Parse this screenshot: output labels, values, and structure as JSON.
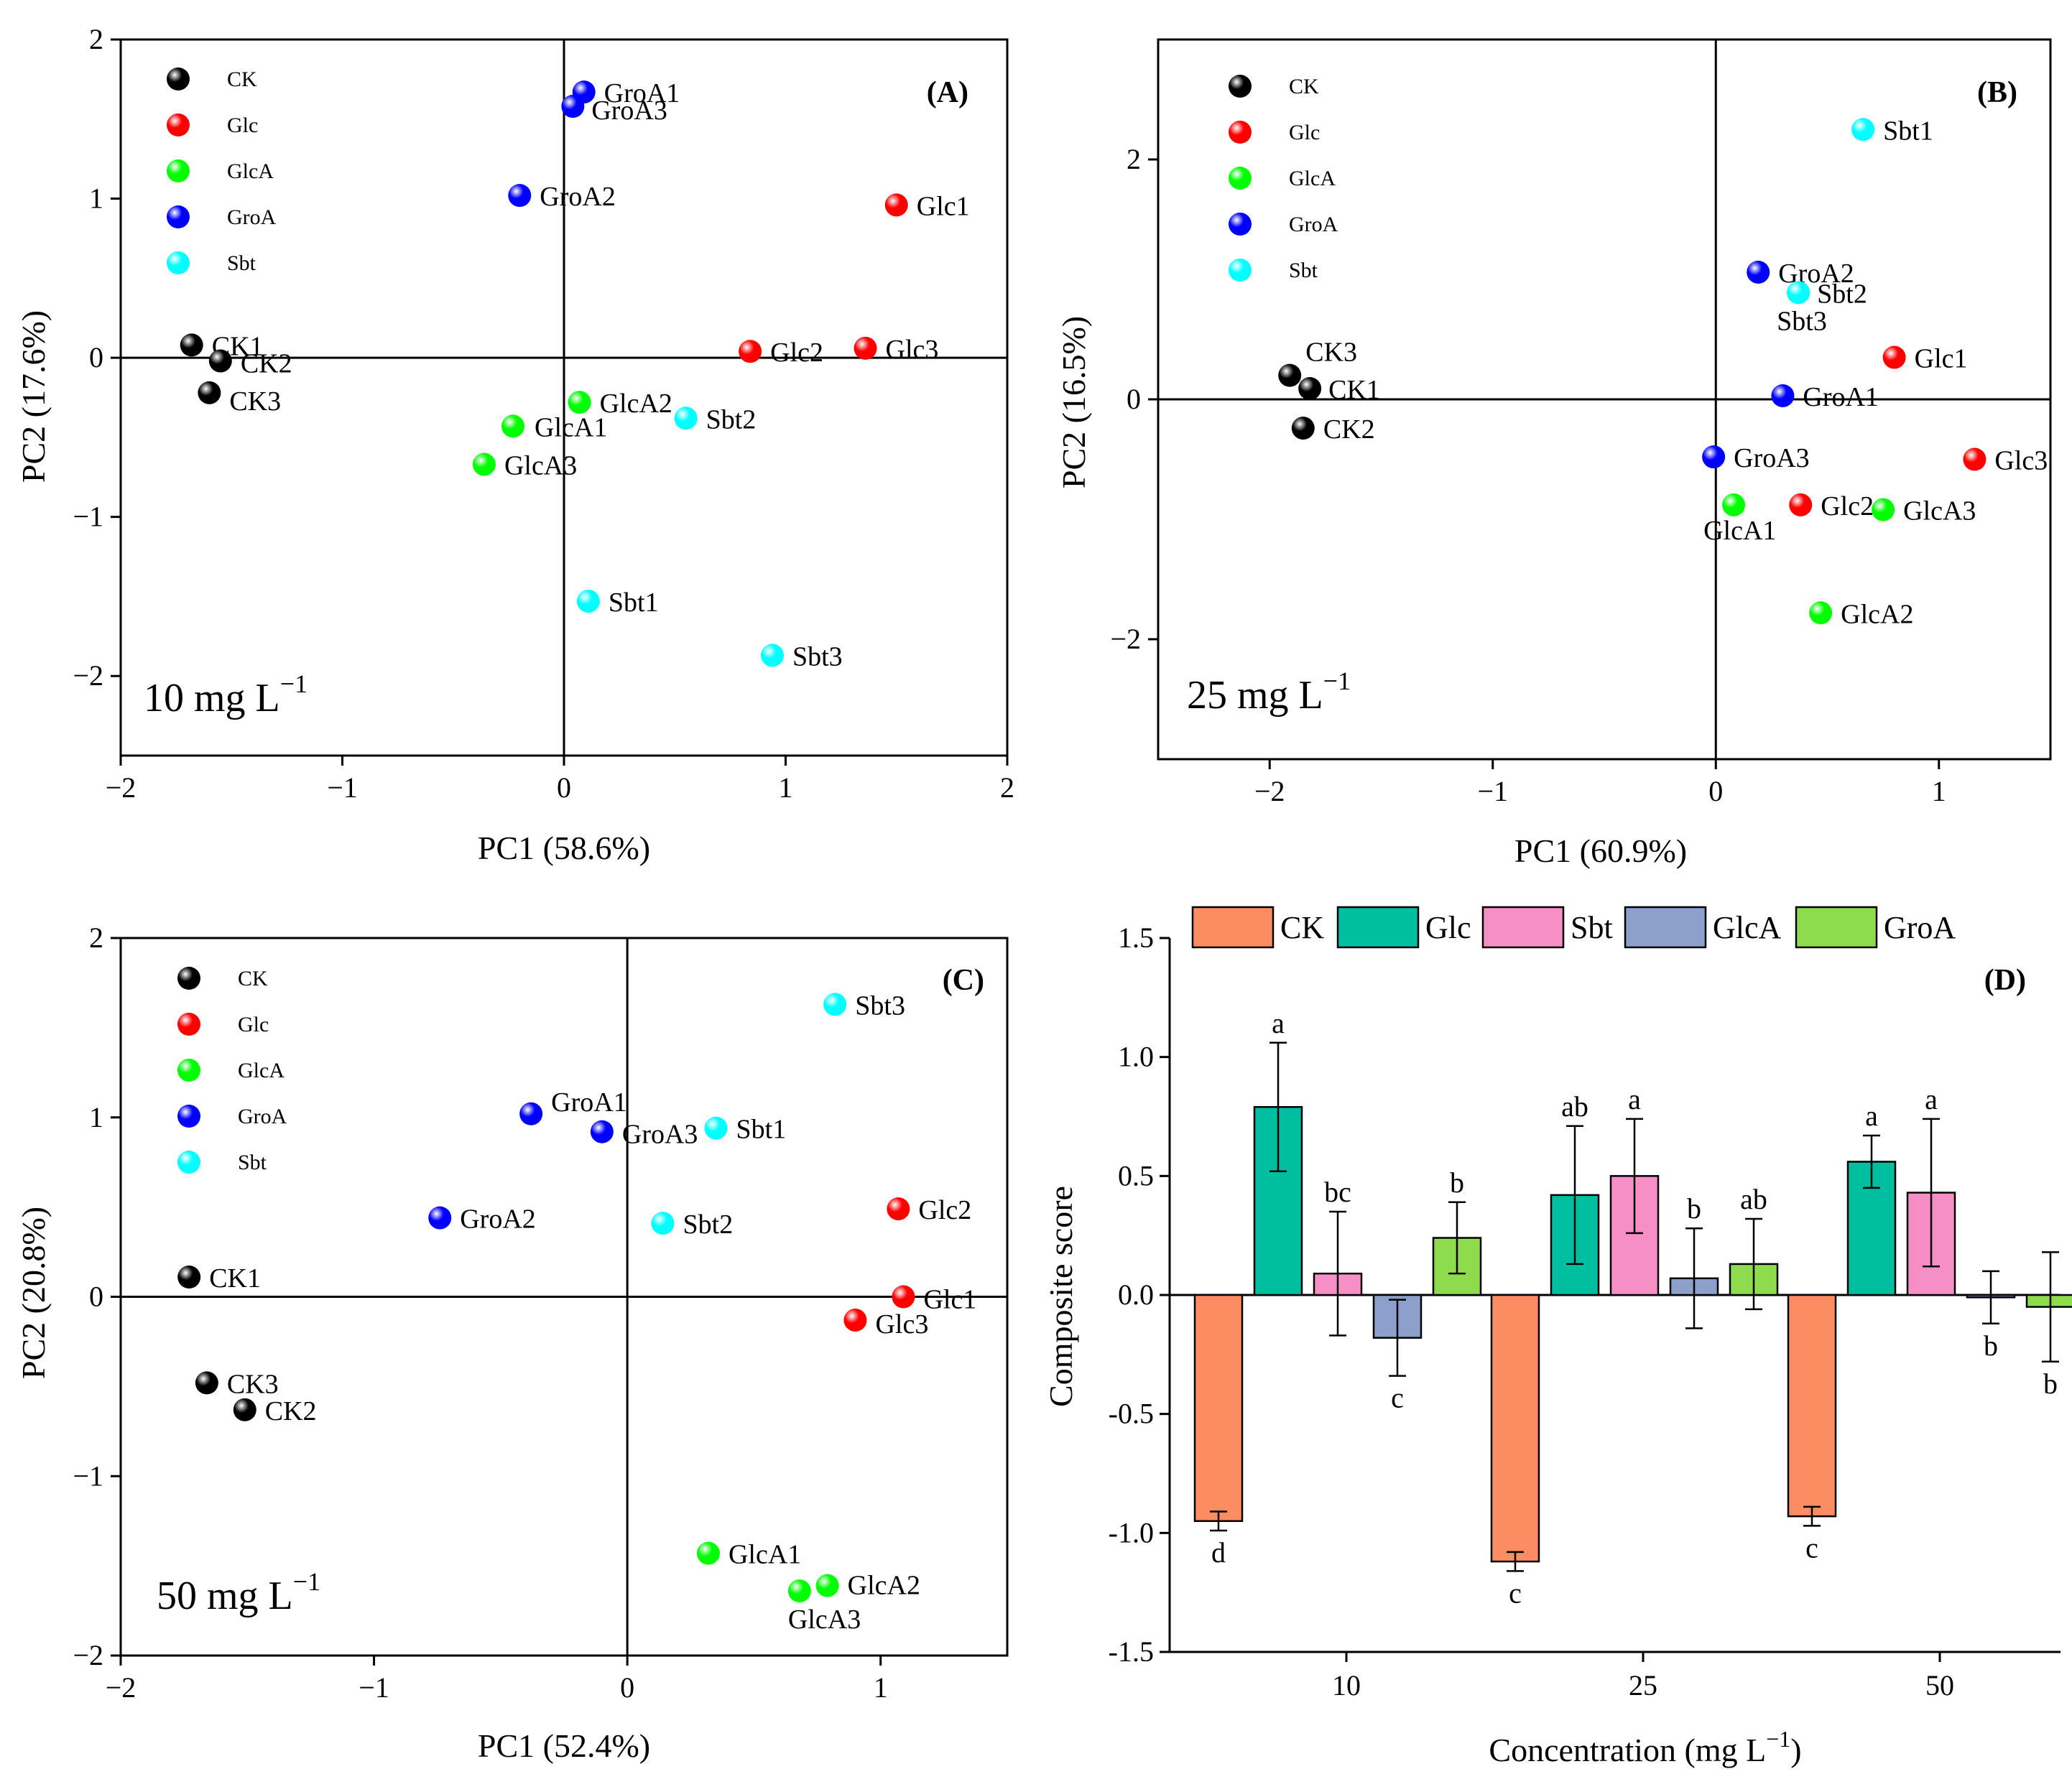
{
  "legend_groups": [
    {
      "name": "CK",
      "color": "#000000"
    },
    {
      "name": "Glc",
      "color": "#ff0000"
    },
    {
      "name": "GlcA",
      "color": "#00ff00"
    },
    {
      "name": "GroA",
      "color": "#0000ff"
    },
    {
      "name": "Sbt",
      "color": "#00ffff"
    }
  ],
  "chart_data": [
    {
      "type": "scatter",
      "panel": "(A)",
      "concentration_label": "10 mg L",
      "concentration_exp": "−1",
      "xlabel": "PC1 (58.6%)",
      "ylabel": "PC2 (17.6%)",
      "xlim": [
        -2,
        2
      ],
      "ylim": [
        -2.5,
        2
      ],
      "xticks": [
        -2,
        -1,
        0,
        1,
        2
      ],
      "yticks": [
        -2,
        -1,
        0,
        1,
        2
      ],
      "points": [
        {
          "label": "CK1",
          "group": "CK",
          "x": -1.68,
          "y": 0.08
        },
        {
          "label": "CK2",
          "group": "CK",
          "x": -1.55,
          "y": -0.02
        },
        {
          "label": "CK3",
          "group": "CK",
          "x": -1.6,
          "y": -0.22
        },
        {
          "label": "GroA1",
          "group": "GroA",
          "x": 0.09,
          "y": 1.67
        },
        {
          "label": "GroA3",
          "group": "GroA",
          "x": 0.04,
          "y": 1.58
        },
        {
          "label": "GroA2",
          "group": "GroA",
          "x": -0.2,
          "y": 1.02
        },
        {
          "label": "Glc1",
          "group": "Glc",
          "x": 1.5,
          "y": 0.96
        },
        {
          "label": "Glc2",
          "group": "Glc",
          "x": 0.84,
          "y": 0.04
        },
        {
          "label": "Glc3",
          "group": "Glc",
          "x": 1.36,
          "y": 0.06
        },
        {
          "label": "GlcA2",
          "group": "GlcA",
          "x": 0.07,
          "y": -0.28
        },
        {
          "label": "GlcA1",
          "group": "GlcA",
          "x": -0.23,
          "y": -0.43
        },
        {
          "label": "GlcA3",
          "group": "GlcA",
          "x": -0.36,
          "y": -0.67
        },
        {
          "label": "Sbt2",
          "group": "Sbt",
          "x": 0.55,
          "y": -0.38
        },
        {
          "label": "Sbt1",
          "group": "Sbt",
          "x": 0.11,
          "y": -1.53
        },
        {
          "label": "Sbt3",
          "group": "Sbt",
          "x": 0.94,
          "y": -1.87
        }
      ]
    },
    {
      "type": "scatter",
      "panel": "(B)",
      "concentration_label": "25 mg L",
      "concentration_exp": "−1",
      "xlabel": "PC1 (60.9%)",
      "ylabel": "PC2 (16.5%)",
      "xlim": [
        -2.5,
        1.5
      ],
      "ylim": [
        -3,
        3
      ],
      "xticks": [
        -2,
        -1,
        0,
        1
      ],
      "yticks": [
        -2,
        0,
        2
      ],
      "points": [
        {
          "label": "Sbt1",
          "group": "Sbt",
          "x": 0.66,
          "y": 2.25
        },
        {
          "label": "GroA2",
          "group": "GroA",
          "x": 0.19,
          "y": 1.06
        },
        {
          "label": "Sbt2",
          "group": "Sbt",
          "x": 0.37,
          "y": 0.89
        },
        {
          "label": "Sbt3",
          "group": "Sbt",
          "x": 0.37,
          "y": 0.89
        },
        {
          "label": "Glc1",
          "group": "Glc",
          "x": 0.8,
          "y": 0.35
        },
        {
          "label": "GroA1",
          "group": "GroA",
          "x": 0.3,
          "y": 0.03
        },
        {
          "label": "CK3",
          "group": "CK",
          "x": -1.91,
          "y": 0.2
        },
        {
          "label": "CK1",
          "group": "CK",
          "x": -1.82,
          "y": 0.09
        },
        {
          "label": "CK2",
          "group": "CK",
          "x": -1.85,
          "y": -0.24
        },
        {
          "label": "GroA3",
          "group": "GroA",
          "x": -0.01,
          "y": -0.48
        },
        {
          "label": "Glc3",
          "group": "Glc",
          "x": 1.16,
          "y": -0.5
        },
        {
          "label": "GlcA1",
          "group": "GlcA",
          "x": 0.08,
          "y": -0.88
        },
        {
          "label": "Glc2",
          "group": "Glc",
          "x": 0.38,
          "y": -0.88
        },
        {
          "label": "GlcA3",
          "group": "GlcA",
          "x": 0.75,
          "y": -0.92
        },
        {
          "label": "GlcA2",
          "group": "GlcA",
          "x": 0.47,
          "y": -1.78
        }
      ]
    },
    {
      "type": "scatter",
      "panel": "(C)",
      "concentration_label": "50 mg L",
      "concentration_exp": "−1",
      "xlabel": "PC1 (52.4%)",
      "ylabel": "PC2 (20.8%)",
      "xlim": [
        -2,
        1.5
      ],
      "ylim": [
        -2,
        2
      ],
      "xticks": [
        -2,
        -1,
        0,
        1
      ],
      "yticks": [
        -2,
        -1,
        0,
        1,
        2
      ],
      "points": [
        {
          "label": "Sbt3",
          "group": "Sbt",
          "x": 0.82,
          "y": 1.63
        },
        {
          "label": "GroA1",
          "group": "GroA",
          "x": -0.38,
          "y": 1.02
        },
        {
          "label": "GroA3",
          "group": "GroA",
          "x": -0.1,
          "y": 0.92
        },
        {
          "label": "Sbt1",
          "group": "Sbt",
          "x": 0.35,
          "y": 0.94
        },
        {
          "label": "GroA2",
          "group": "GroA",
          "x": -0.74,
          "y": 0.44
        },
        {
          "label": "Sbt2",
          "group": "Sbt",
          "x": 0.14,
          "y": 0.41
        },
        {
          "label": "Glc2",
          "group": "Glc",
          "x": 1.07,
          "y": 0.49
        },
        {
          "label": "CK1",
          "group": "CK",
          "x": -1.73,
          "y": 0.11
        },
        {
          "label": "Glc1",
          "group": "Glc",
          "x": 1.09,
          "y": 0.0
        },
        {
          "label": "Glc3",
          "group": "Glc",
          "x": 0.9,
          "y": -0.13
        },
        {
          "label": "CK3",
          "group": "CK",
          "x": -1.66,
          "y": -0.48
        },
        {
          "label": "CK2",
          "group": "CK",
          "x": -1.51,
          "y": -0.63
        },
        {
          "label": "GlcA1",
          "group": "GlcA",
          "x": 0.32,
          "y": -1.43
        },
        {
          "label": "GlcA2",
          "group": "GlcA",
          "x": 0.79,
          "y": -1.61
        },
        {
          "label": "GlcA3",
          "group": "GlcA",
          "x": 0.68,
          "y": -1.64
        }
      ]
    },
    {
      "type": "bar",
      "panel": "(D)",
      "xlabel": "Concentration (mg L",
      "xlabel_exp": "−1",
      "xlabel_suffix": ")",
      "ylabel": "Composite score",
      "ylim": [
        -1.5,
        1.5
      ],
      "yticks": [
        "-1.5",
        "-1.0",
        "-0.5",
        "0.0",
        "0.5",
        "1.0",
        "1.5"
      ],
      "categories": [
        "10",
        "25",
        "50"
      ],
      "series": [
        {
          "name": "CK",
          "color": "#fc8d62",
          "values": [
            -0.95,
            -1.12,
            -0.93
          ],
          "errors": [
            0.04,
            0.04,
            0.04
          ],
          "letters": [
            "d",
            "c",
            "c"
          ]
        },
        {
          "name": "Glc",
          "color": "#00bfa0",
          "values": [
            0.79,
            0.42,
            0.56
          ],
          "errors": [
            0.27,
            0.29,
            0.11
          ],
          "letters": [
            "a",
            "ab",
            "a"
          ]
        },
        {
          "name": "Sbt",
          "color": "#f78fc7",
          "values": [
            0.09,
            0.5,
            0.43
          ],
          "errors": [
            0.26,
            0.24,
            0.31
          ],
          "letters": [
            "bc",
            "a",
            "a"
          ]
        },
        {
          "name": "GlcA",
          "color": "#8ca0cb",
          "values": [
            -0.18,
            0.07,
            -0.01
          ],
          "errors": [
            0.16,
            0.21,
            0.11
          ],
          "letters": [
            "c",
            "b",
            "b"
          ]
        },
        {
          "name": "GroA",
          "color": "#8fdb4e",
          "values": [
            0.24,
            0.13,
            -0.05
          ],
          "errors": [
            0.15,
            0.19,
            0.23
          ],
          "letters": [
            "b",
            "ab",
            "b"
          ]
        }
      ]
    }
  ]
}
